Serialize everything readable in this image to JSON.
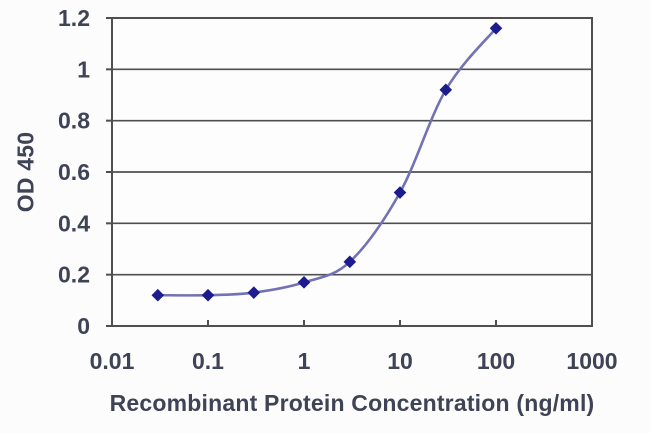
{
  "chart_data": {
    "type": "line",
    "title": "",
    "xlabel": "Recombinant Protein Concentration (ng/ml)",
    "ylabel": "OD 450",
    "x_scale": "log",
    "xlim": [
      0.01,
      1000
    ],
    "ylim": [
      0,
      1.2
    ],
    "x_ticks": [
      0.01,
      0.1,
      1,
      10,
      100,
      1000
    ],
    "x_tick_labels": [
      "0.01",
      "0.1",
      "1",
      "10",
      "100",
      "1000"
    ],
    "y_ticks": [
      0,
      0.2,
      0.4,
      0.6,
      0.8,
      1,
      1.2
    ],
    "y_tick_labels": [
      "0",
      "0.2",
      "0.4",
      "0.6",
      "0.8",
      "1",
      "1.2"
    ],
    "grid": "horizontal-only",
    "legend": "none",
    "marker_shape": "diamond",
    "line_style": "smooth",
    "series": [
      {
        "name": "OD 450",
        "x": [
          0.03,
          0.1,
          0.3,
          1,
          3,
          10,
          30,
          100
        ],
        "y": [
          0.12,
          0.12,
          0.13,
          0.17,
          0.25,
          0.52,
          0.92,
          1.16
        ]
      }
    ],
    "colors": {
      "line": "#7272b4",
      "marker": "#1c1c8e",
      "grid": "#4f4f4f",
      "axis": "#4f4f4f",
      "tick_text": "#3f4356",
      "plot_background": "#fdfdfd",
      "page_background": "#fcfcfc"
    }
  }
}
